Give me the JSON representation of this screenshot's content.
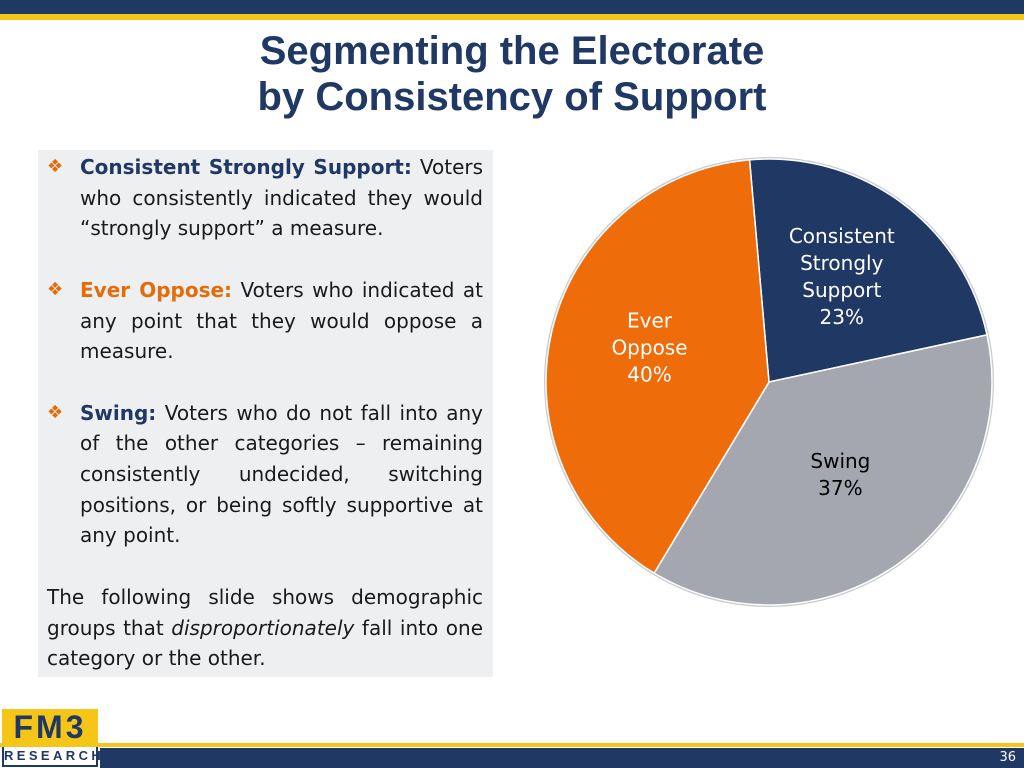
{
  "header": {
    "title": [
      "Segmenting the Electorate",
      "by Consistency of Support"
    ]
  },
  "definitions": [
    {
      "term": "Consistent Strongly Support:",
      "text": "Voters who consistently indicated they would “strongly support” a measure."
    },
    {
      "term": "Ever Oppose:",
      "text": "Voters who indicated at any point that they would oppose a measure."
    },
    {
      "term": "Swing:",
      "text": "Voters who do not fall into any of the other categories – remaining consistently undecided, switching positions, or being softly supportive at any point."
    }
  ],
  "note": [
    "The following slide shows demographic groups that ",
    "disproportionately",
    " fall into one category or the other."
  ],
  "chart_data": {
    "type": "pie",
    "categories": [
      "Consistent Strongly Support",
      "Swing",
      "Ever Oppose"
    ],
    "values": [
      23,
      37,
      40
    ],
    "value_labels": [
      "23%",
      "37%",
      "40%"
    ],
    "colors": [
      "#1f3864",
      "#a5a7b0",
      "#ef6c0a"
    ],
    "label_colors": [
      "#ffffff",
      "#000000",
      "#ffffff"
    ]
  },
  "footer": {
    "logo": "FM3",
    "logo_sub": "RESEARCH",
    "page": "36"
  }
}
